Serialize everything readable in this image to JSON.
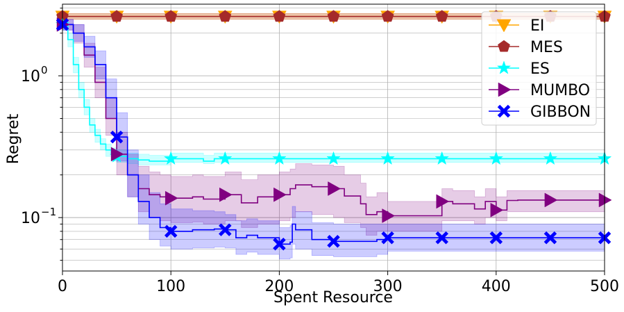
{
  "chart_data": {
    "type": "line",
    "title": "",
    "xlabel": "Spent Resource",
    "ylabel": "Regret",
    "xlim": [
      0,
      500
    ],
    "ylim": [
      0.042,
      3.2
    ],
    "yscale": "log",
    "grid": true,
    "legend_position": "top-right",
    "x_ticks": [
      {
        "value": 0,
        "label": "0"
      },
      {
        "value": 100,
        "label": "100"
      },
      {
        "value": 200,
        "label": "200"
      },
      {
        "value": 300,
        "label": "300"
      },
      {
        "value": 400,
        "label": "400"
      },
      {
        "value": 500,
        "label": "500"
      }
    ],
    "y_ticks": [
      {
        "value": 0.1,
        "base": "10",
        "exp": "−1"
      },
      {
        "value": 1,
        "base": "10",
        "exp": "0"
      }
    ],
    "series": [
      {
        "name": "EI",
        "color": "#ffa500",
        "marker": "triangle-down",
        "x": [
          0,
          500
        ],
        "y": [
          2.62,
          2.62
        ],
        "lower": [
          2.5,
          2.5
        ],
        "upper": [
          2.75,
          2.75
        ],
        "marker_x": [
          0,
          50,
          100,
          150,
          200,
          250,
          300,
          350,
          400,
          450,
          500
        ]
      },
      {
        "name": "MES",
        "color": "#a52a2a",
        "marker": "pentagon",
        "x": [
          0,
          500
        ],
        "y": [
          2.62,
          2.62
        ],
        "lower": [
          2.5,
          2.5
        ],
        "upper": [
          2.75,
          2.75
        ],
        "marker_x": [
          0,
          50,
          100,
          150,
          200,
          250,
          300,
          350,
          400,
          450,
          500
        ]
      },
      {
        "name": "ES",
        "color": "#00ffff",
        "marker": "star",
        "x": [
          0,
          5,
          10,
          15,
          20,
          25,
          30,
          35,
          40,
          45,
          50,
          60,
          70,
          80,
          100,
          120,
          130,
          140,
          150,
          200,
          250,
          300,
          350,
          400,
          450,
          500
        ],
        "y": [
          2.3,
          1.8,
          1.2,
          0.8,
          0.6,
          0.45,
          0.38,
          0.33,
          0.3,
          0.28,
          0.27,
          0.26,
          0.255,
          0.25,
          0.26,
          0.26,
          0.25,
          0.26,
          0.26,
          0.26,
          0.26,
          0.26,
          0.26,
          0.26,
          0.26,
          0.26
        ],
        "lower": [
          2.1,
          1.6,
          1.05,
          0.7,
          0.53,
          0.4,
          0.34,
          0.3,
          0.27,
          0.25,
          0.245,
          0.24,
          0.235,
          0.235,
          0.245,
          0.245,
          0.24,
          0.245,
          0.245,
          0.245,
          0.245,
          0.245,
          0.245,
          0.245,
          0.245,
          0.245
        ],
        "upper": [
          2.5,
          2.0,
          1.35,
          0.9,
          0.68,
          0.5,
          0.42,
          0.36,
          0.33,
          0.31,
          0.3,
          0.285,
          0.28,
          0.275,
          0.285,
          0.285,
          0.275,
          0.285,
          0.285,
          0.285,
          0.285,
          0.285,
          0.285,
          0.285,
          0.285,
          0.285
        ],
        "marker_x": [
          0,
          50,
          100,
          150,
          200,
          250,
          300,
          350,
          400,
          450,
          500
        ]
      },
      {
        "name": "MUMBO",
        "color": "#800080",
        "marker": "triangle-right",
        "x": [
          0,
          10,
          20,
          30,
          40,
          50,
          60,
          70,
          80,
          90,
          100,
          120,
          130,
          150,
          165,
          180,
          200,
          210,
          215,
          230,
          250,
          260,
          275,
          280,
          290,
          300,
          320,
          340,
          350,
          360,
          380,
          390,
          400,
          410,
          420,
          450,
          500
        ],
        "y": [
          2.3,
          2.0,
          1.4,
          0.9,
          0.5,
          0.28,
          0.2,
          0.16,
          0.145,
          0.14,
          0.137,
          0.14,
          0.135,
          0.145,
          0.127,
          0.14,
          0.145,
          0.16,
          0.17,
          0.165,
          0.16,
          0.142,
          0.125,
          0.105,
          0.11,
          0.103,
          0.103,
          0.103,
          0.13,
          0.125,
          0.115,
          0.13,
          0.113,
          0.132,
          0.133,
          0.133,
          0.133
        ],
        "lower": [
          2.1,
          1.7,
          1.15,
          0.7,
          0.38,
          0.2,
          0.14,
          0.11,
          0.1,
          0.095,
          0.092,
          0.093,
          0.09,
          0.095,
          0.085,
          0.09,
          0.095,
          0.1,
          0.11,
          0.105,
          0.1,
          0.092,
          0.085,
          0.075,
          0.08,
          0.08,
          0.08,
          0.08,
          0.095,
          0.095,
          0.09,
          0.1,
          0.095,
          0.11,
          0.11,
          0.11,
          0.11
        ],
        "upper": [
          2.5,
          2.3,
          1.7,
          1.15,
          0.7,
          0.4,
          0.28,
          0.23,
          0.21,
          0.2,
          0.195,
          0.2,
          0.195,
          0.21,
          0.185,
          0.2,
          0.21,
          0.22,
          0.24,
          0.235,
          0.23,
          0.2,
          0.175,
          0.14,
          0.15,
          0.13,
          0.13,
          0.13,
          0.16,
          0.155,
          0.14,
          0.16,
          0.14,
          0.155,
          0.155,
          0.155,
          0.155
        ],
        "marker_x": [
          0,
          50,
          100,
          150,
          200,
          250,
          300,
          350,
          400,
          450,
          500
        ]
      },
      {
        "name": "GIBBON",
        "color": "#0000ff",
        "marker": "x-filled",
        "x": [
          0,
          10,
          20,
          30,
          40,
          50,
          60,
          70,
          80,
          90,
          100,
          120,
          140,
          150,
          160,
          170,
          180,
          200,
          210,
          212,
          215,
          230,
          250,
          270,
          290,
          300,
          350,
          400,
          450,
          500
        ],
        "y": [
          2.3,
          2.0,
          1.6,
          1.2,
          0.7,
          0.37,
          0.2,
          0.13,
          0.1,
          0.085,
          0.08,
          0.082,
          0.083,
          0.082,
          0.072,
          0.075,
          0.072,
          0.065,
          0.067,
          0.09,
          0.082,
          0.07,
          0.068,
          0.068,
          0.07,
          0.072,
          0.072,
          0.072,
          0.072,
          0.072
        ],
        "lower": [
          2.1,
          1.75,
          1.35,
          0.95,
          0.5,
          0.25,
          0.14,
          0.09,
          0.07,
          0.063,
          0.06,
          0.061,
          0.062,
          0.061,
          0.055,
          0.057,
          0.055,
          0.051,
          0.052,
          0.065,
          0.06,
          0.054,
          0.053,
          0.053,
          0.055,
          0.058,
          0.058,
          0.058,
          0.058,
          0.058
        ],
        "upper": [
          2.5,
          2.3,
          1.9,
          1.5,
          0.95,
          0.55,
          0.3,
          0.2,
          0.15,
          0.125,
          0.115,
          0.112,
          0.11,
          0.105,
          0.095,
          0.098,
          0.095,
          0.085,
          0.088,
          0.12,
          0.11,
          0.092,
          0.09,
          0.09,
          0.09,
          0.09,
          0.09,
          0.09,
          0.09,
          0.09
        ],
        "marker_x": [
          0,
          50,
          100,
          150,
          200,
          250,
          300,
          350,
          400,
          450,
          500
        ]
      }
    ]
  }
}
